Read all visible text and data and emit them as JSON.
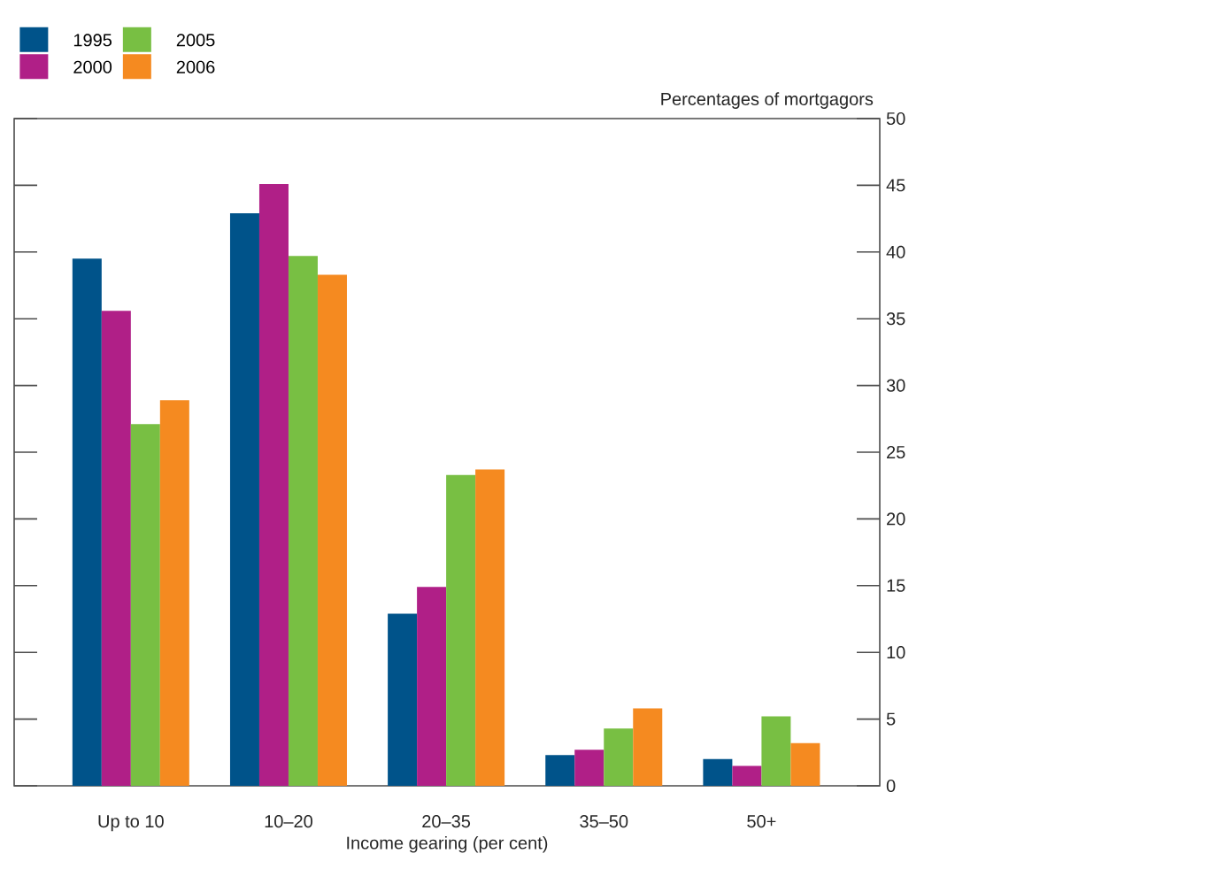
{
  "chart_data": {
    "type": "bar",
    "xlabel": "Income gearing (per cent)",
    "ylabel": "Percentages of mortgagors",
    "categories": [
      "Up to 10",
      "10–20",
      "20–35",
      "35–50",
      "50+"
    ],
    "series": [
      {
        "name": "1995",
        "color": "#00538a",
        "values": [
          39.5,
          42.9,
          12.9,
          2.3,
          2.0
        ]
      },
      {
        "name": "2000",
        "color": "#b01f87",
        "values": [
          35.6,
          45.1,
          14.9,
          2.7,
          1.5
        ]
      },
      {
        "name": "2005",
        "color": "#78bf43",
        "values": [
          27.1,
          39.7,
          23.3,
          4.3,
          5.2
        ]
      },
      {
        "name": "2006",
        "color": "#f58a20",
        "values": [
          28.9,
          38.3,
          23.7,
          5.8,
          3.2
        ]
      }
    ],
    "ylim": [
      0,
      50
    ],
    "yticks": [
      0,
      5,
      10,
      15,
      20,
      25,
      30,
      35,
      40,
      45,
      50
    ],
    "legend": "top left"
  }
}
